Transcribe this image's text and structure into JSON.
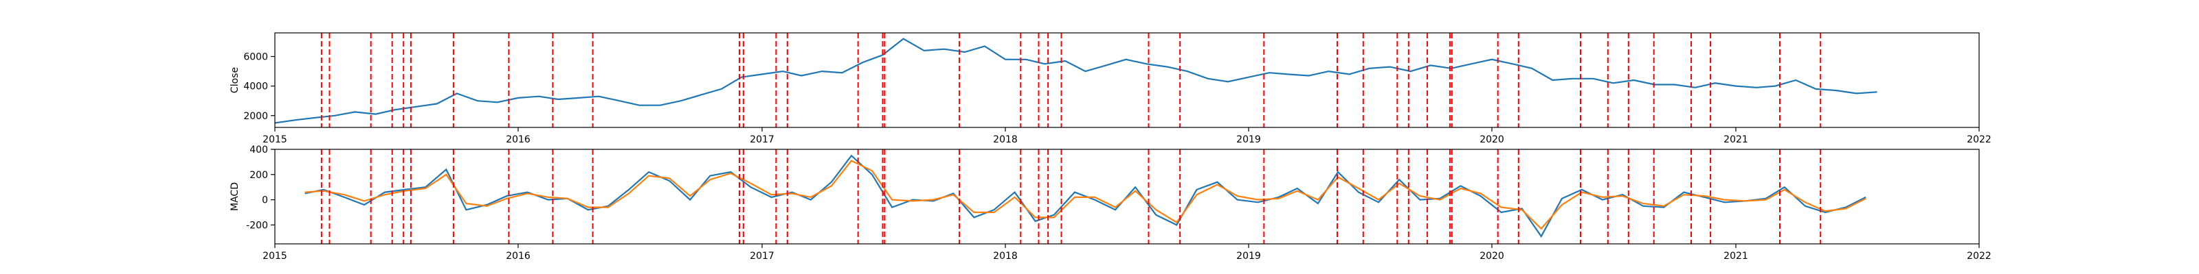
{
  "chart_data": [
    {
      "type": "line",
      "title": "",
      "xlabel": "",
      "ylabel": "Close",
      "xlim": [
        "2015-01-01",
        "2022-01-01"
      ],
      "ylim": [
        1200,
        7600
      ],
      "x_ticks": [
        "2015",
        "2016",
        "2017",
        "2018",
        "2019",
        "2020",
        "2021",
        "2022"
      ],
      "y_ticks": [
        2000,
        4000,
        6000
      ],
      "grid": false,
      "series": [
        {
          "color": "#1f77b4",
          "x": [
            "2015-01-01",
            "2015-02-01",
            "2015-03-01",
            "2015-04-01",
            "2015-05-01",
            "2015-06-01",
            "2015-07-01",
            "2015-08-01",
            "2015-09-01",
            "2015-10-01",
            "2015-11-01",
            "2015-12-01",
            "2016-01-01",
            "2016-02-01",
            "2016-03-01",
            "2016-04-01",
            "2016-05-01",
            "2016-06-01",
            "2016-07-01",
            "2016-08-01",
            "2016-09-01",
            "2016-10-01",
            "2016-11-01",
            "2016-12-01",
            "2017-01-01",
            "2017-02-01",
            "2017-03-01",
            "2017-04-01",
            "2017-05-01",
            "2017-06-01",
            "2017-07-01",
            "2017-08-01",
            "2017-09-01",
            "2017-10-01",
            "2017-11-01",
            "2017-12-01",
            "2018-01-01",
            "2018-02-01",
            "2018-03-01",
            "2018-04-01",
            "2018-05-01",
            "2018-06-01",
            "2018-07-01",
            "2018-08-01",
            "2018-09-01",
            "2018-10-01",
            "2018-11-01",
            "2018-12-01",
            "2019-01-01",
            "2019-02-01",
            "2019-03-01",
            "2019-04-01",
            "2019-05-01",
            "2019-06-01",
            "2019-07-01",
            "2019-08-01",
            "2019-09-01",
            "2019-10-01",
            "2019-11-01",
            "2019-12-01",
            "2020-01-01",
            "2020-02-01",
            "2020-03-01",
            "2020-04-01",
            "2020-05-01",
            "2020-06-01",
            "2020-07-01",
            "2020-08-01",
            "2020-09-01",
            "2020-10-01",
            "2020-11-01",
            "2020-12-01",
            "2021-01-01",
            "2021-02-01",
            "2021-03-01",
            "2021-04-01",
            "2021-05-01",
            "2021-06-01",
            "2021-07-01",
            "2021-08-01"
          ],
          "values": [
            1500,
            1700,
            1850,
            2000,
            2250,
            2100,
            2400,
            2600,
            2800,
            3500,
            3000,
            2900,
            3200,
            3300,
            3100,
            3200,
            3300,
            3000,
            2700,
            2700,
            3000,
            3400,
            3800,
            4600,
            4800,
            5000,
            4700,
            5000,
            4900,
            5600,
            6100,
            7200,
            6400,
            6500,
            6300,
            6700,
            5800,
            5800,
            5500,
            5700,
            5000,
            5400,
            5800,
            5500,
            5300,
            5000,
            4500,
            4300,
            4600,
            4900,
            4800,
            4700,
            5000,
            4800,
            5200,
            5300,
            5000,
            5400,
            5200,
            5500,
            5800,
            5500,
            5200,
            4400,
            4500,
            4500,
            4200,
            4400,
            4100,
            4100,
            3900,
            4200,
            4000,
            3900,
            4000,
            4400,
            3800,
            3700,
            3500,
            3600
          ]
        }
      ],
      "vlines": [
        "2015-03-12",
        "2015-03-24",
        "2015-05-25",
        "2015-06-26",
        "2015-07-13",
        "2015-07-24",
        "2015-09-26",
        "2015-12-18",
        "2016-02-22",
        "2016-04-22",
        "2016-11-28",
        "2016-12-04",
        "2017-01-22",
        "2017-02-08",
        "2017-05-25",
        "2017-07-01",
        "2017-07-04",
        "2017-10-24",
        "2018-01-24",
        "2018-02-20",
        "2018-03-06",
        "2018-03-26",
        "2018-08-04",
        "2018-09-20",
        "2019-01-24",
        "2019-05-14",
        "2019-06-22",
        "2019-08-12",
        "2019-08-29",
        "2019-09-26",
        "2019-10-30",
        "2019-11-02",
        "2020-01-10",
        "2020-02-10",
        "2020-05-13",
        "2020-06-23",
        "2020-07-24",
        "2020-08-31",
        "2020-10-26",
        "2020-11-24",
        "2021-03-08",
        "2021-05-08"
      ]
    },
    {
      "type": "line",
      "title": "",
      "xlabel": "",
      "ylabel": "MACD",
      "xlim": [
        "2015-01-01",
        "2022-01-01"
      ],
      "ylim": [
        -350,
        400
      ],
      "x_ticks": [
        "2015",
        "2016",
        "2017",
        "2018",
        "2019",
        "2020",
        "2021",
        "2022"
      ],
      "y_ticks": [
        -200,
        0,
        200,
        400
      ],
      "grid": false,
      "series": [
        {
          "color": "#1f77b4",
          "x": [
            "2015-02-15",
            "2015-03-15",
            "2015-04-15",
            "2015-05-15",
            "2015-06-15",
            "2015-07-15",
            "2015-08-15",
            "2015-09-15",
            "2015-10-15",
            "2015-11-15",
            "2015-12-15",
            "2016-01-15",
            "2016-02-15",
            "2016-03-15",
            "2016-04-15",
            "2016-05-15",
            "2016-06-15",
            "2016-07-15",
            "2016-08-15",
            "2016-09-15",
            "2016-10-15",
            "2016-11-15",
            "2016-12-15",
            "2017-01-15",
            "2017-02-15",
            "2017-03-15",
            "2017-04-15",
            "2017-05-15",
            "2017-06-15",
            "2017-07-15",
            "2017-08-15",
            "2017-09-15",
            "2017-10-15",
            "2017-11-15",
            "2017-12-15",
            "2018-01-15",
            "2018-02-15",
            "2018-03-15",
            "2018-04-15",
            "2018-05-15",
            "2018-06-15",
            "2018-07-15",
            "2018-08-15",
            "2018-09-15",
            "2018-10-15",
            "2018-11-15",
            "2018-12-15",
            "2019-01-15",
            "2019-02-15",
            "2019-03-15",
            "2019-04-15",
            "2019-05-15",
            "2019-06-15",
            "2019-07-15",
            "2019-08-15",
            "2019-09-15",
            "2019-10-15",
            "2019-11-15",
            "2019-12-15",
            "2020-01-15",
            "2020-02-15",
            "2020-03-15",
            "2020-04-15",
            "2020-05-15",
            "2020-06-15",
            "2020-07-15",
            "2020-08-15",
            "2020-09-15",
            "2020-10-15",
            "2020-11-15",
            "2020-12-15",
            "2021-01-15",
            "2021-02-15",
            "2021-03-15",
            "2021-04-15",
            "2021-05-15",
            "2021-06-15",
            "2021-07-15"
          ],
          "values": [
            50,
            80,
            20,
            -40,
            60,
            80,
            100,
            240,
            -80,
            -40,
            30,
            60,
            0,
            10,
            -80,
            -50,
            80,
            220,
            150,
            0,
            190,
            220,
            100,
            20,
            60,
            0,
            140,
            350,
            200,
            -60,
            0,
            -10,
            50,
            -140,
            -80,
            60,
            -170,
            -120,
            60,
            0,
            -80,
            100,
            -120,
            -200,
            80,
            140,
            0,
            -20,
            20,
            90,
            -30,
            220,
            60,
            -20,
            160,
            0,
            10,
            110,
            30,
            -100,
            -70,
            -290,
            10,
            80,
            0,
            40,
            -50,
            -60,
            60,
            20,
            -20,
            -10,
            10,
            100,
            -50,
            -100,
            -60,
            20
          ]
        },
        {
          "color": "#ff7f0e",
          "x": [
            "2015-02-15",
            "2015-03-15",
            "2015-04-15",
            "2015-05-15",
            "2015-06-15",
            "2015-07-15",
            "2015-08-15",
            "2015-09-15",
            "2015-10-15",
            "2015-11-15",
            "2015-12-15",
            "2016-01-15",
            "2016-02-15",
            "2016-03-15",
            "2016-04-15",
            "2016-05-15",
            "2016-06-15",
            "2016-07-15",
            "2016-08-15",
            "2016-09-15",
            "2016-10-15",
            "2016-11-15",
            "2016-12-15",
            "2017-01-15",
            "2017-02-15",
            "2017-03-15",
            "2017-04-15",
            "2017-05-15",
            "2017-06-15",
            "2017-07-15",
            "2017-08-15",
            "2017-09-15",
            "2017-10-15",
            "2017-11-15",
            "2017-12-15",
            "2018-01-15",
            "2018-02-15",
            "2018-03-15",
            "2018-04-15",
            "2018-05-15",
            "2018-06-15",
            "2018-07-15",
            "2018-08-15",
            "2018-09-15",
            "2018-10-15",
            "2018-11-15",
            "2018-12-15",
            "2019-01-15",
            "2019-02-15",
            "2019-03-15",
            "2019-04-15",
            "2019-05-15",
            "2019-06-15",
            "2019-07-15",
            "2019-08-15",
            "2019-09-15",
            "2019-10-15",
            "2019-11-15",
            "2019-12-15",
            "2020-01-15",
            "2020-02-15",
            "2020-03-15",
            "2020-04-15",
            "2020-05-15",
            "2020-06-15",
            "2020-07-15",
            "2020-08-15",
            "2020-09-15",
            "2020-10-15",
            "2020-11-15",
            "2020-12-15",
            "2021-01-15",
            "2021-02-15",
            "2021-03-15",
            "2021-04-15",
            "2021-05-15",
            "2021-06-15",
            "2021-07-15"
          ],
          "values": [
            60,
            70,
            40,
            -10,
            40,
            70,
            90,
            200,
            -30,
            -50,
            10,
            50,
            20,
            10,
            -60,
            -60,
            50,
            190,
            170,
            30,
            160,
            210,
            130,
            40,
            50,
            20,
            110,
            310,
            230,
            0,
            -10,
            0,
            40,
            -100,
            -100,
            20,
            -140,
            -140,
            20,
            20,
            -60,
            70,
            -80,
            -180,
            40,
            120,
            30,
            0,
            10,
            70,
            0,
            180,
            90,
            0,
            130,
            30,
            0,
            90,
            50,
            -60,
            -80,
            -230,
            -40,
            60,
            20,
            30,
            -30,
            -50,
            40,
            30,
            0,
            -10,
            0,
            80,
            -20,
            -90,
            -70,
            10
          ]
        }
      ],
      "vlines": [
        "2015-03-12",
        "2015-03-24",
        "2015-05-25",
        "2015-06-26",
        "2015-07-13",
        "2015-07-24",
        "2015-09-26",
        "2015-12-18",
        "2016-02-22",
        "2016-04-22",
        "2016-11-28",
        "2016-12-04",
        "2017-01-22",
        "2017-02-08",
        "2017-05-25",
        "2017-07-01",
        "2017-07-04",
        "2017-10-24",
        "2018-01-24",
        "2018-02-20",
        "2018-03-06",
        "2018-03-26",
        "2018-08-04",
        "2018-09-20",
        "2019-01-24",
        "2019-05-14",
        "2019-06-22",
        "2019-08-12",
        "2019-08-29",
        "2019-09-26",
        "2019-10-30",
        "2019-11-02",
        "2020-01-10",
        "2020-02-10",
        "2020-05-13",
        "2020-06-23",
        "2020-07-24",
        "2020-08-31",
        "2020-10-26",
        "2020-11-24",
        "2021-03-08",
        "2021-05-08"
      ]
    }
  ]
}
